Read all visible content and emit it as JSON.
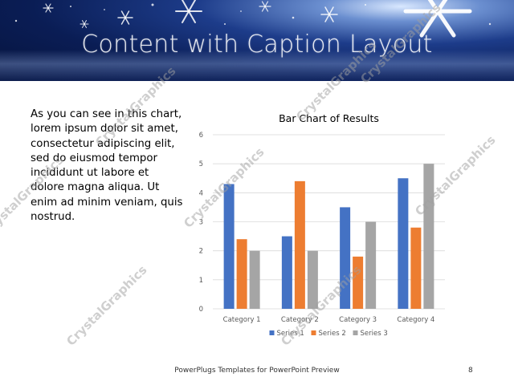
{
  "slide": {
    "title": "Content with Caption Layout",
    "caption": "As you can see in this chart, lorem ipsum dolor sit amet, consectetur adipiscing elit, sed do eiusmod tempor incididunt ut labore et dolore magna aliqua. Ut enim ad minim veniam, quis nostrud.",
    "footer": "PowerPlugs Templates for PowerPoint Preview",
    "page_number": "8",
    "watermark": "CrystalGraphics"
  },
  "chart_data": {
    "type": "bar",
    "title": "Bar Chart of Results",
    "categories": [
      "Category 1",
      "Category 2",
      "Category 3",
      "Category 4"
    ],
    "series": [
      {
        "name": "Series 1",
        "values": [
          4.3,
          2.5,
          3.5,
          4.5
        ],
        "color": "#4472C4"
      },
      {
        "name": "Series 2",
        "values": [
          2.4,
          4.4,
          1.8,
          2.8
        ],
        "color": "#ED7D31"
      },
      {
        "name": "Series 3",
        "values": [
          2,
          2,
          3,
          5
        ],
        "color": "#A5A5A5"
      }
    ],
    "ylim": [
      0,
      6
    ],
    "yticks": [
      "0",
      "1",
      "2",
      "3",
      "4",
      "5",
      "6"
    ],
    "xlabel": "",
    "ylabel": "",
    "grid": true,
    "legend": "bottom"
  }
}
